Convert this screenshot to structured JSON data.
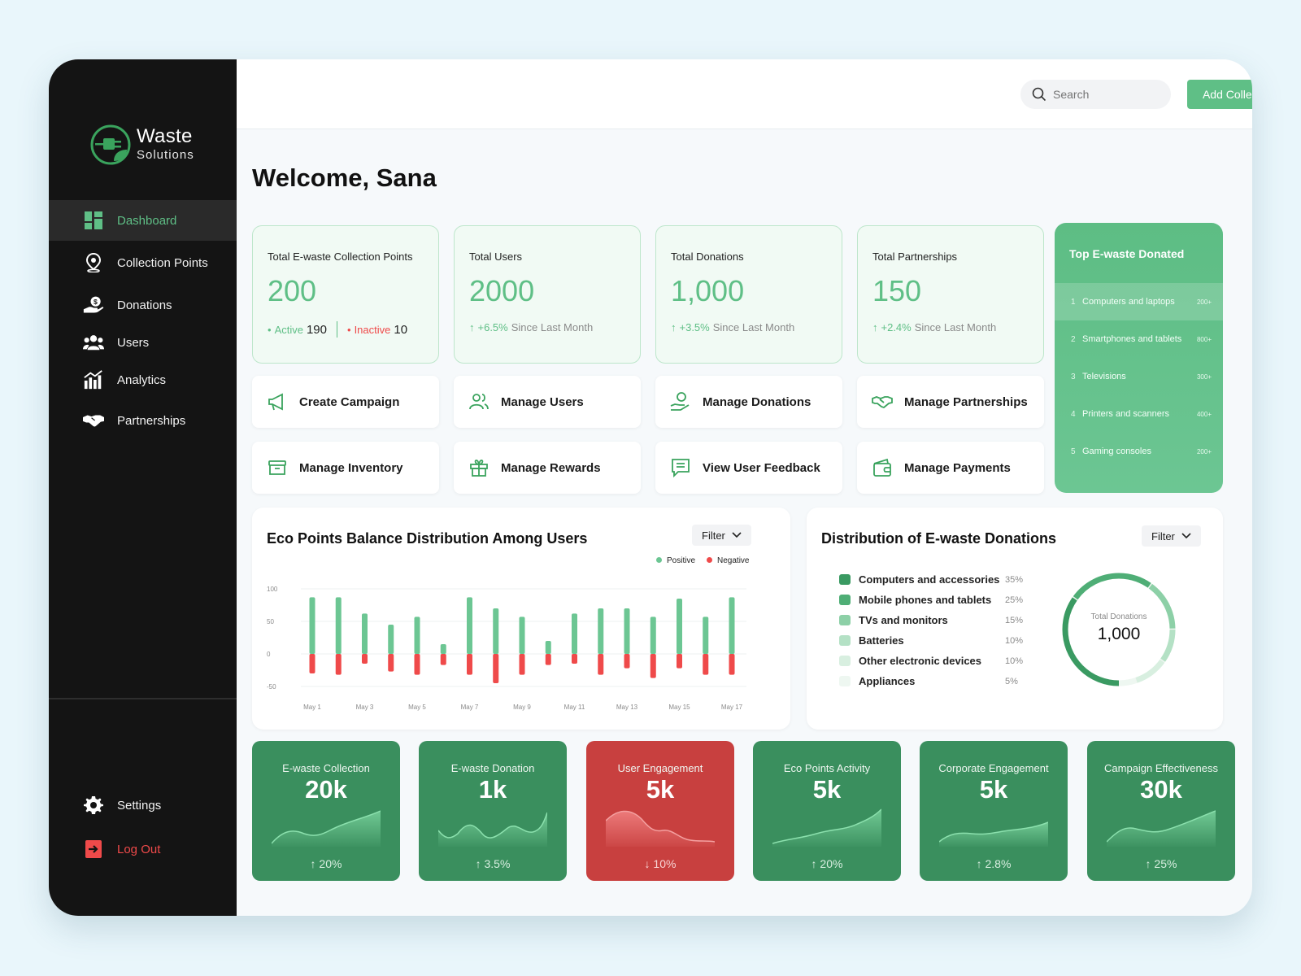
{
  "brand": {
    "name": "Waste",
    "tagline": "Solutions"
  },
  "sidebar": {
    "items": [
      {
        "label": "Dashboard",
        "icon": "dashboard-icon",
        "active": true
      },
      {
        "label": "Collection Points",
        "icon": "location-pin-icon"
      },
      {
        "label": "Donations",
        "icon": "donation-hand-icon"
      },
      {
        "label": "Users",
        "icon": "users-icon"
      },
      {
        "label": "Analytics",
        "icon": "analytics-icon"
      },
      {
        "label": "Partnerships",
        "icon": "handshake-icon"
      }
    ],
    "bottom": [
      {
        "label": "Settings",
        "icon": "gear-icon"
      },
      {
        "label": "Log Out",
        "icon": "logout-icon"
      }
    ]
  },
  "topbar": {
    "search_placeholder": "Search",
    "add_button": "Add Collection Point"
  },
  "welcome": "Welcome, Sana",
  "stats": [
    {
      "title": "Total E-waste Collection Points",
      "value": "200",
      "active_label": "Active",
      "active_value": "190",
      "inactive_label": "Inactive",
      "inactive_value": "10"
    },
    {
      "title": "Total Users",
      "value": "2000",
      "change": "+6.5%",
      "change_note": "Since Last Month"
    },
    {
      "title": "Total Donations",
      "value": "1,000",
      "change": "+3.5%",
      "change_note": "Since Last Month"
    },
    {
      "title": "Total Partnerships",
      "value": "150",
      "change": "+2.4%",
      "change_note": "Since Last Month"
    }
  ],
  "top_donated": {
    "title": "Top E-waste Donated",
    "items": [
      {
        "rank": "1",
        "name": "Computers and laptops",
        "count": "200+"
      },
      {
        "rank": "2",
        "name": "Smartphones and tablets",
        "count": "800+"
      },
      {
        "rank": "3",
        "name": "Televisions",
        "count": "300+"
      },
      {
        "rank": "4",
        "name": "Printers and scanners",
        "count": "400+"
      },
      {
        "rank": "5",
        "name": "Gaming consoles",
        "count": "200+"
      }
    ]
  },
  "actions": [
    {
      "label": "Create Campaign",
      "icon": "megaphone-icon"
    },
    {
      "label": "Manage Users",
      "icon": "users-outline-icon"
    },
    {
      "label": "Manage Donations",
      "icon": "donation-outline-icon"
    },
    {
      "label": "Manage Partnerships",
      "icon": "handshake-outline-icon"
    },
    {
      "label": "Manage Inventory",
      "icon": "archive-box-icon"
    },
    {
      "label": "Manage Rewards",
      "icon": "gift-icon"
    },
    {
      "label": "View User Feedback",
      "icon": "feedback-icon"
    },
    {
      "label": "Manage Payments",
      "icon": "wallet-icon"
    }
  ],
  "eco_chart": {
    "title": "Eco Points Balance Distribution Among Users",
    "filter": "Filter",
    "legend": [
      "Positive",
      "Negative"
    ]
  },
  "distribution": {
    "title": "Distribution of E-waste Donations",
    "filter": "Filter",
    "center_label": "Total Donations",
    "center_value": "1,000",
    "items": [
      {
        "name": "Computers and accessories",
        "pct": "35%",
        "color": "#3a9a62"
      },
      {
        "name": "Mobile phones and tablets",
        "pct": "25%",
        "color": "#4fae76"
      },
      {
        "name": "TVs and monitors",
        "pct": "15%",
        "color": "#8dd0a7"
      },
      {
        "name": "Batteries",
        "pct": "10%",
        "color": "#b4e1c5"
      },
      {
        "name": "Other electronic devices",
        "pct": "10%",
        "color": "#d8efe0"
      },
      {
        "name": "Appliances",
        "pct": "5%",
        "color": "#eef7f1"
      }
    ]
  },
  "kpis": [
    {
      "title": "E-waste Collection",
      "value": "20k",
      "change": "20%",
      "dir": "up",
      "tone": "green"
    },
    {
      "title": "E-waste Donation",
      "value": "1k",
      "change": "3.5%",
      "dir": "up",
      "tone": "green"
    },
    {
      "title": "User Engagement",
      "value": "5k",
      "change": "10%",
      "dir": "down",
      "tone": "red"
    },
    {
      "title": "Eco Points Activity",
      "value": "5k",
      "change": "20%",
      "dir": "up",
      "tone": "green"
    },
    {
      "title": "Corporate Engagement",
      "value": "5k",
      "change": "2.8%",
      "dir": "up",
      "tone": "green"
    },
    {
      "title": "Campaign Effectiveness",
      "value": "30k",
      "change": "25%",
      "dir": "up",
      "tone": "green"
    }
  ],
  "chart_data": [
    {
      "type": "bar",
      "title": "Eco Points Balance Distribution Among Users",
      "categories": [
        "May 1",
        "May 2",
        "May 3",
        "May 4",
        "May 5",
        "May 6",
        "May 7",
        "May 8",
        "May 9",
        "May 10",
        "May 11",
        "May 12",
        "May 13",
        "May 14",
        "May 15",
        "May 16",
        "May 17"
      ],
      "tick_labels": [
        "May 1",
        "May 3",
        "May 5",
        "May 7",
        "May 9",
        "May 11",
        "May 13",
        "May 15",
        "May 17"
      ],
      "series": [
        {
          "name": "Positive",
          "color": "#6cc693",
          "values": [
            87,
            87,
            62,
            45,
            57,
            15,
            87,
            70,
            57,
            20,
            62,
            70,
            70,
            57,
            85,
            57,
            87
          ]
        },
        {
          "name": "Negative",
          "color": "#ef4a4a",
          "values": [
            -30,
            -32,
            -15,
            -27,
            -32,
            -17,
            -32,
            -45,
            -32,
            -17,
            -15,
            -32,
            -22,
            -37,
            -22,
            -32,
            -32
          ]
        }
      ],
      "ylim": [
        -50,
        100
      ],
      "yticks": [
        100,
        50,
        0,
        -50
      ],
      "legend": "top-right",
      "grid": true
    },
    {
      "type": "pie",
      "title": "Distribution of E-waste Donations",
      "labels": [
        "Computers and accessories",
        "Mobile phones and tablets",
        "TVs and monitors",
        "Batteries",
        "Other electronic devices",
        "Appliances"
      ],
      "values": [
        35,
        25,
        15,
        10,
        10,
        5
      ],
      "center_label": "Total Donations",
      "center_value": "1,000"
    }
  ]
}
